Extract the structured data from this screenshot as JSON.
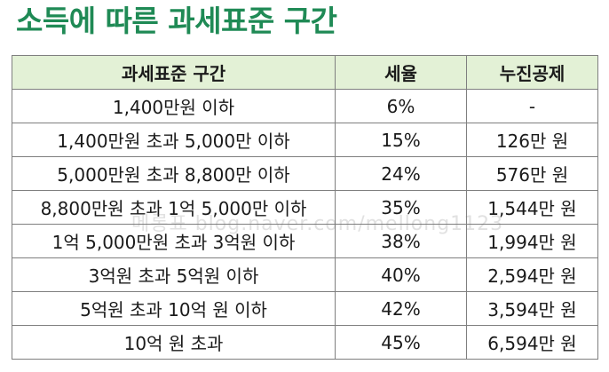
{
  "title": "소득에 따른 과세표준 구간",
  "table": {
    "headers": [
      "과세표준 구간",
      "세율",
      "누진공제"
    ],
    "rows": [
      {
        "bracket": "1,400만원 이하",
        "rate": "6%",
        "deduction": "-"
      },
      {
        "bracket": "1,400만원 초과 5,000만 이하",
        "rate": "15%",
        "deduction": "126만 원"
      },
      {
        "bracket": "5,000만원 초과 8,800만 이하",
        "rate": "24%",
        "deduction": "576만 원"
      },
      {
        "bracket": "8,800만원 초과 1억 5,000만 이하",
        "rate": "35%",
        "deduction": "1,544만 원"
      },
      {
        "bracket": "1억 5,000만원 초과 3억원 이하",
        "rate": "38%",
        "deduction": "1,994만 원"
      },
      {
        "bracket": "3억원 초과 5억원 이하",
        "rate": "40%",
        "deduction": "2,594만 원"
      },
      {
        "bracket": "5억원 초과 10억 원 이하",
        "rate": "42%",
        "deduction": "3,594만 원"
      },
      {
        "bracket": "10억 원 초과",
        "rate": "45%",
        "deduction": "6,594만 원"
      }
    ]
  },
  "watermark": "메롱표 blog.naver.com/mellong1123",
  "colors": {
    "title": "#1f8a55",
    "header_bg": "#e3f1d6",
    "border": "#7f7f7f"
  }
}
